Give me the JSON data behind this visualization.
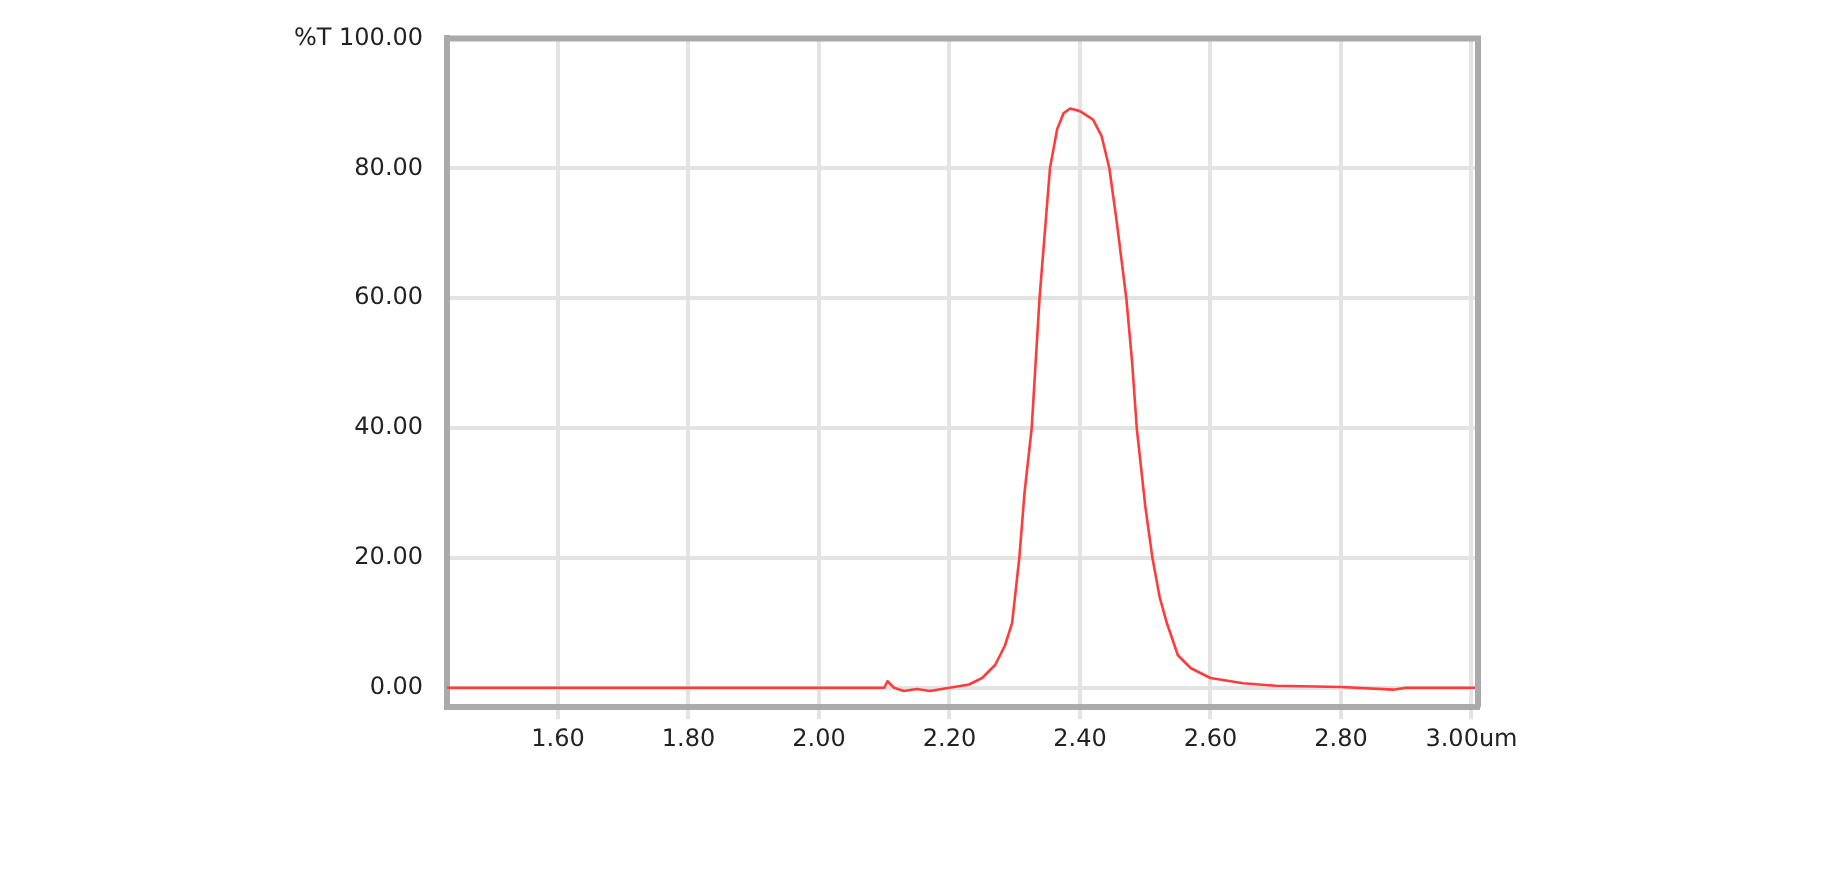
{
  "chart_data": {
    "type": "line",
    "x": [
      1.43,
      2.1,
      2.105,
      2.115,
      2.13,
      2.15,
      2.17,
      2.2,
      2.23,
      2.25,
      2.27,
      2.285,
      2.296,
      2.307,
      2.315,
      2.326,
      2.338,
      2.354,
      2.365,
      2.375,
      2.385,
      2.4,
      2.42,
      2.433,
      2.445,
      2.456,
      2.471,
      2.48,
      2.487,
      2.5,
      2.511,
      2.522,
      2.533,
      2.55,
      2.57,
      2.6,
      2.65,
      2.7,
      2.8,
      2.88,
      2.9,
      3.01
    ],
    "series": [
      {
        "color": "#ff3c3c",
        "values": [
          0,
          0,
          1,
          0,
          -0.5,
          -0.2,
          -0.5,
          0,
          0.5,
          1.5,
          3.5,
          6.5,
          10,
          20,
          30,
          40,
          60,
          80,
          86,
          88.5,
          89.2,
          88.8,
          87.5,
          85,
          80,
          72,
          60,
          50,
          40,
          28,
          20,
          14,
          10,
          5,
          3,
          1.5,
          0.7,
          0.3,
          0.1,
          -0.3,
          0,
          0
        ]
      }
    ],
    "xlim": [
      1.43,
      3.01
    ],
    "xticks": [
      {
        "value": 1.6,
        "label": "1.60"
      },
      {
        "value": 1.8,
        "label": "1.80"
      },
      {
        "value": 2.0,
        "label": "2.00"
      },
      {
        "value": 2.2,
        "label": "2.20"
      },
      {
        "value": 2.4,
        "label": "2.40"
      },
      {
        "value": 2.6,
        "label": "2.60"
      },
      {
        "value": 2.8,
        "label": "2.80"
      },
      {
        "value": 3.0,
        "label": "3.00um"
      }
    ],
    "ylim": [
      -3,
      100
    ],
    "yticks": [
      {
        "value": 0,
        "label": "0.00"
      },
      {
        "value": 20,
        "label": "20.00"
      },
      {
        "value": 40,
        "label": "40.00"
      },
      {
        "value": 60,
        "label": "60.00"
      },
      {
        "value": 80,
        "label": "80.00"
      },
      {
        "value": 100,
        "label": "%T 100.00"
      }
    ],
    "grid": true,
    "legend": false,
    "marker": "none",
    "line_style": "solid"
  }
}
